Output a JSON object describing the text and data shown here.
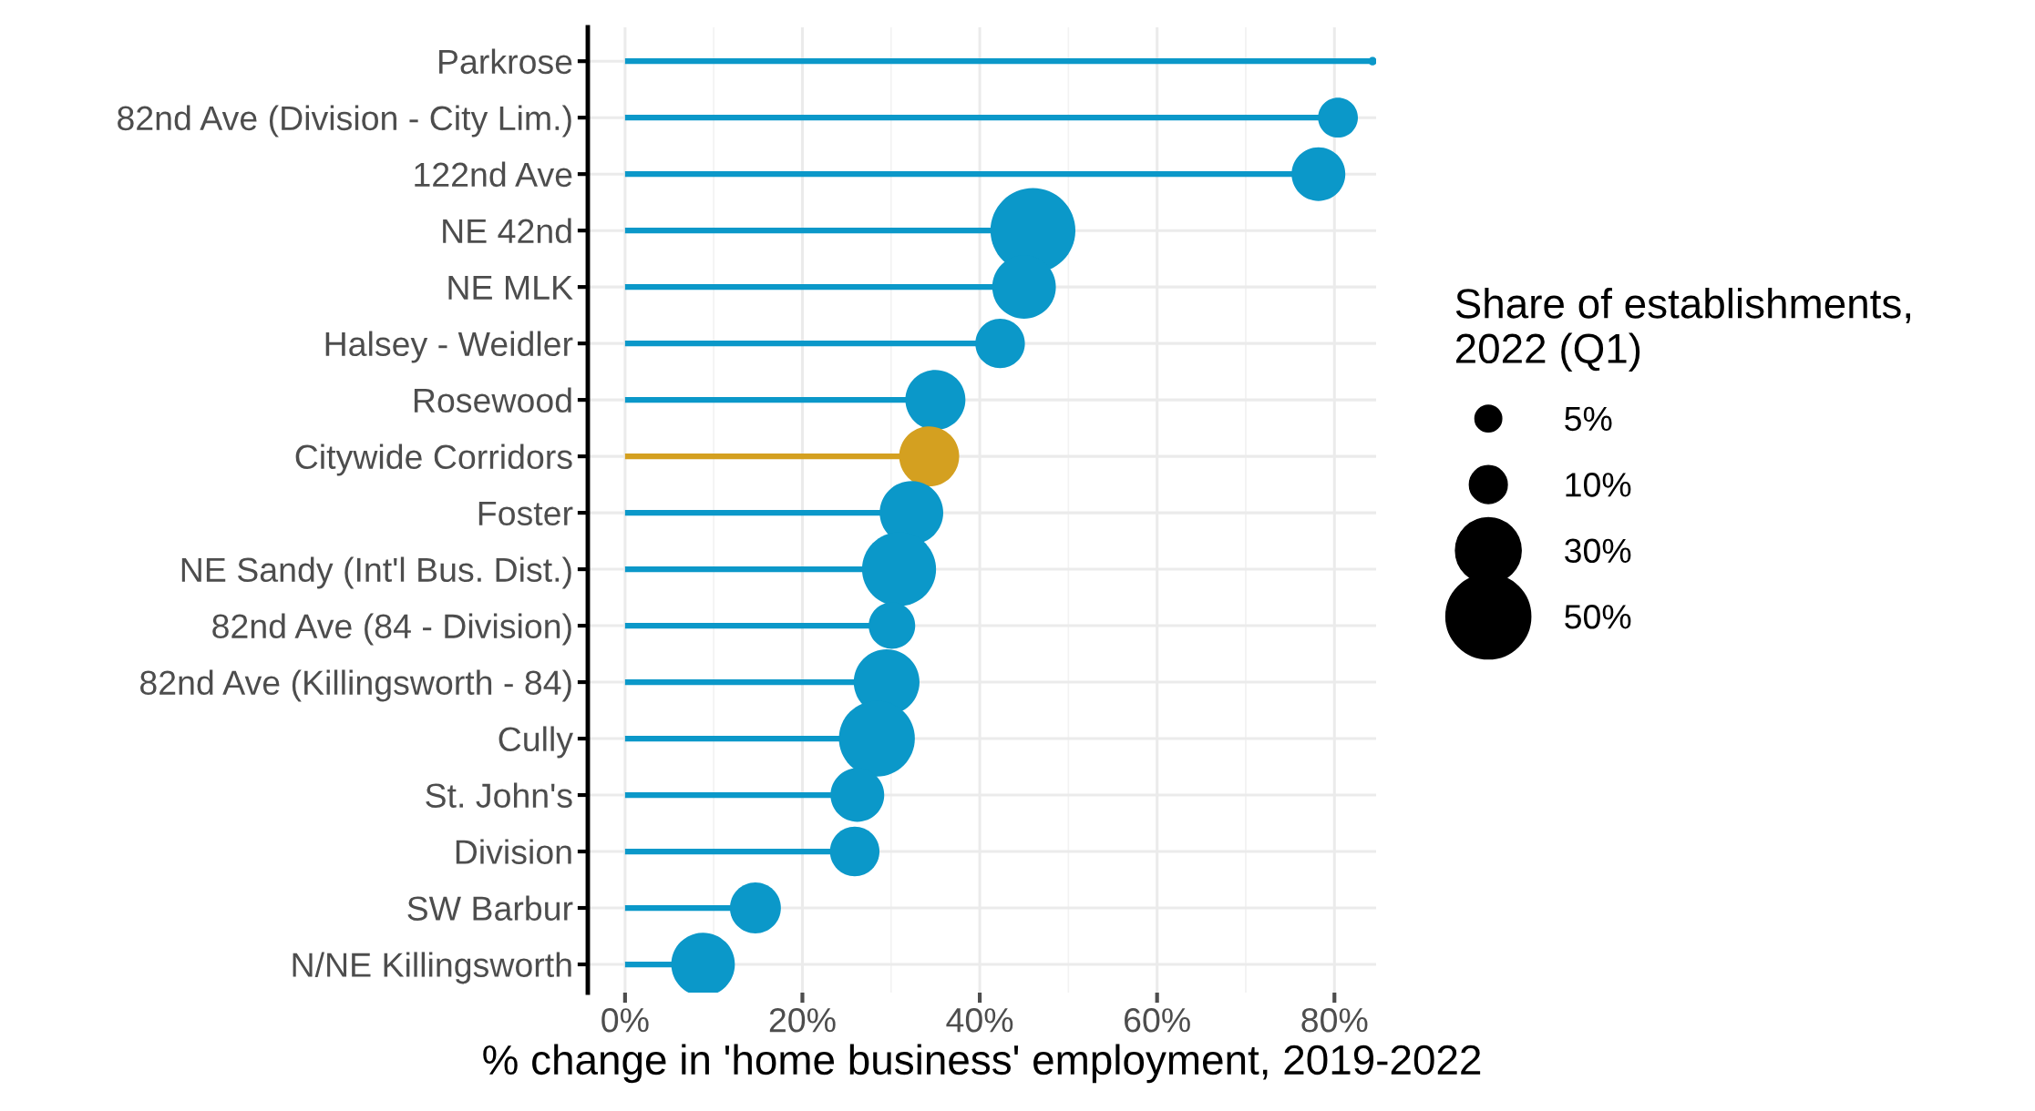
{
  "chart_data": {
    "type": "lollipop",
    "orientation": "horizontal",
    "xlabel": "% change in 'home business' employment, 2019-2022",
    "legend_title": "Share of establishments,\n2022 (Q1)",
    "categories": [
      "Parkrose",
      "82nd Ave (Division - City Lim.)",
      "122nd Ave",
      "NE 42nd",
      "NE MLK",
      "Halsey - Weidler",
      "Rosewood",
      "Citywide Corridors",
      "Foster",
      "NE Sandy (Int'l Bus. Dist.)",
      "82nd Ave (84 - Division)",
      "82nd Ave (Killingsworth - 84)",
      "Cully",
      "St. John's",
      "Division",
      "SW Barbur",
      "N/NE Killingsworth"
    ],
    "values": [
      84.3,
      80.4,
      78.2,
      46.0,
      45.0,
      42.3,
      35.0,
      34.3,
      32.3,
      30.9,
      30.1,
      29.5,
      28.4,
      26.2,
      25.9,
      14.7,
      8.8
    ],
    "sizes": [
      0.5,
      11,
      20,
      50,
      28,
      17,
      25,
      25,
      28,
      38,
      15,
      30,
      40,
      20,
      17,
      18,
      28
    ],
    "size_legend": [
      {
        "value": 5,
        "label": "5%"
      },
      {
        "value": 10,
        "label": "10%"
      },
      {
        "value": 30,
        "label": "30%"
      },
      {
        "value": 50,
        "label": "50%"
      }
    ],
    "colors": [
      "#0b98c9",
      "#0b98c9",
      "#0b98c9",
      "#0b98c9",
      "#0b98c9",
      "#0b98c9",
      "#0b98c9",
      "#d4a020",
      "#0b98c9",
      "#0b98c9",
      "#0b98c9",
      "#0b98c9",
      "#0b98c9",
      "#0b98c9",
      "#0b98c9",
      "#0b98c9",
      "#0b98c9"
    ],
    "xlim": [
      -4.2,
      84.7
    ],
    "xticks": [
      {
        "value": 0,
        "label": "0%"
      },
      {
        "value": 20,
        "label": "20%"
      },
      {
        "value": 40,
        "label": "40%"
      },
      {
        "value": 60,
        "label": "60%"
      },
      {
        "value": 80,
        "label": "80%"
      }
    ],
    "grid": true,
    "marker": "circle"
  }
}
